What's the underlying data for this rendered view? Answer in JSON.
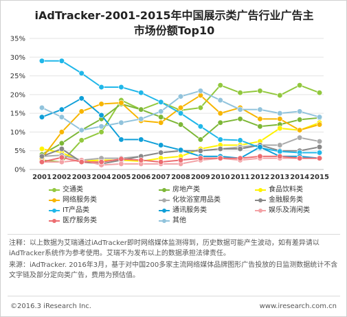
{
  "chart_data": {
    "type": "line",
    "title_line1": "iAdTracker-2001-2015年中国展示类广告行业广告主",
    "title_line2": "市场份额Top10",
    "x": [
      "2001",
      "2002",
      "2003",
      "2004",
      "2005",
      "2006",
      "2007",
      "2008",
      "2009",
      "2010",
      "2011",
      "2012",
      "2013",
      "2014",
      "2015"
    ],
    "ylim": [
      0,
      35
    ],
    "yticks": [
      "0%",
      "5%",
      "10%",
      "15%",
      "20%",
      "25%",
      "30%",
      "35%"
    ],
    "ytick_values": [
      0,
      5,
      10,
      15,
      20,
      25,
      30,
      35
    ],
    "grid": true,
    "series": [
      {
        "name": "交通类",
        "color": "#92c83e",
        "values": [
          2.5,
          2.0,
          7.8,
          10.0,
          18.5,
          16.0,
          18.0,
          15.8,
          16.5,
          22.5,
          20.5,
          21.0,
          19.8,
          22.5,
          20.5
        ]
      },
      {
        "name": "房地产类",
        "color": "#7db737",
        "values": [
          4.0,
          7.0,
          10.5,
          13.5,
          17.5,
          16.0,
          14.0,
          12.0,
          8.0,
          12.5,
          13.5,
          11.5,
          12.0,
          13.3,
          13.8
        ]
      },
      {
        "name": "食品饮料类",
        "color": "#fff200",
        "values": [
          5.5,
          4.5,
          2.2,
          2.5,
          2.5,
          2.2,
          3.0,
          3.5,
          5.5,
          6.5,
          6.5,
          7.5,
          11.0,
          10.5,
          12.5
        ]
      },
      {
        "name": "网络服务类",
        "color": "#f7b500",
        "values": [
          3.0,
          10.0,
          15.5,
          17.5,
          17.8,
          13.0,
          12.5,
          16.5,
          19.8,
          15.0,
          16.5,
          13.5,
          13.5,
          10.5,
          12.0
        ]
      },
      {
        "name": "化妆浴室用品类",
        "color": "#aaaaaa",
        "values": [
          3.5,
          3.8,
          2.5,
          3.0,
          3.0,
          3.5,
          4.5,
          5.0,
          5.0,
          5.5,
          6.0,
          6.5,
          6.5,
          8.5,
          7.5
        ]
      },
      {
        "name": "金融服务类",
        "color": "#888888",
        "values": [
          3.5,
          5.5,
          2.0,
          1.5,
          2.5,
          3.5,
          4.5,
          5.0,
          5.0,
          5.5,
          5.5,
          6.5,
          5.0,
          5.0,
          6.0
        ]
      },
      {
        "name": "IT产品类",
        "color": "#20b7e9",
        "values": [
          29.0,
          29.0,
          25.7,
          22.0,
          22.0,
          20.5,
          18.0,
          15.0,
          11.5,
          8.0,
          7.8,
          5.8,
          4.8,
          4.5,
          4.5
        ]
      },
      {
        "name": "通讯服务类",
        "color": "#0f9fd8",
        "values": [
          14.0,
          16.0,
          19.0,
          14.5,
          8.0,
          8.0,
          6.5,
          5.2,
          3.5,
          3.5,
          3.0,
          6.0,
          3.5,
          3.5,
          3.0
        ]
      },
      {
        "name": "娱乐及消闲类",
        "color": "#f3a2a6",
        "values": [
          2.0,
          2.0,
          2.5,
          1.2,
          1.5,
          1.5,
          1.5,
          1.5,
          2.5,
          3.0,
          2.5,
          3.0,
          3.0,
          3.0,
          3.0
        ]
      },
      {
        "name": "医疗服务类",
        "color": "#ec6d71",
        "values": [
          2.0,
          3.2,
          2.0,
          2.0,
          2.8,
          2.5,
          2.0,
          2.5,
          3.0,
          3.0,
          3.0,
          3.5,
          3.5,
          3.0,
          3.0
        ]
      },
      {
        "name": "其他",
        "color": "#91c3dc",
        "values": [
          16.5,
          14.0,
          10.5,
          11.5,
          12.5,
          13.5,
          15.5,
          19.5,
          21.0,
          18.5,
          16.0,
          16.0,
          15.0,
          15.5,
          14.0
        ]
      }
    ]
  },
  "notes": {
    "note": "注释：以上数据为艾瑞通过iAdTracker即时网络媒体监测得到，历史数据可能产生波动，如有差异请以iAdTracker系统作为参考使用。艾瑞不为发布以上的数据承担法律责任。",
    "source": "来源：iAdTracker. 2016年3月，基于对中国200多家主流网络媒体品牌图形广告投放的日监测数据统计不含文字链及部分定向类广告，费用为预估值。"
  },
  "footer": {
    "copyright": "©2016.3 iResearch Inc.",
    "website": "www.iresearch.com.cn"
  }
}
